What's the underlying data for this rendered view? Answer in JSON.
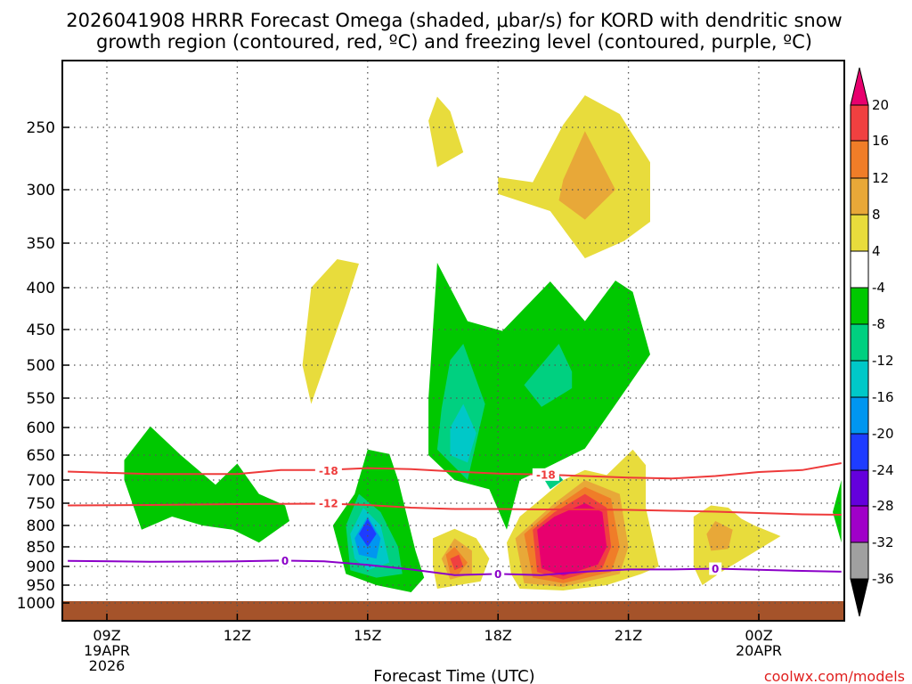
{
  "chart_data": {
    "type": "time-height-contour",
    "title_line1": "2026041908 HRRR Forecast Omega (shaded, μbar/s) for KORD with dendritic snow",
    "title_line2": "growth region (contoured, red, ºC) and freezing level (contoured, purple, ºC)",
    "xlabel": "Forecast Time (UTC)",
    "ylabel": "",
    "credit": "coolwx.com/models",
    "x_ticks": [
      {
        "hour": 9,
        "lines": [
          "09Z",
          "19APR",
          "2026"
        ]
      },
      {
        "hour": 12,
        "lines": [
          "12Z"
        ]
      },
      {
        "hour": 15,
        "lines": [
          "15Z"
        ]
      },
      {
        "hour": 18,
        "lines": [
          "18Z"
        ]
      },
      {
        "hour": 21,
        "lines": [
          "21Z"
        ]
      },
      {
        "hour": 24,
        "lines": [
          "00Z",
          "20APR"
        ]
      }
    ],
    "xlim_hours": [
      8.1,
      25.9
    ],
    "y_ticks": [
      250,
      300,
      350,
      400,
      450,
      500,
      550,
      600,
      650,
      700,
      750,
      800,
      850,
      900,
      950,
      1000
    ],
    "ylim_hpa": [
      200,
      1025
    ],
    "colorbar": {
      "labels": [
        "20",
        "16",
        "12",
        "8",
        "4",
        "-4",
        "-8",
        "-12",
        "-16",
        "-20",
        "-24",
        "-28",
        "-32",
        "-36"
      ],
      "colors": [
        "#e8006e",
        "#f04040",
        "#f07d28",
        "#e8a838",
        "#e8dc3c",
        "#ffffff",
        "#00c800",
        "#00d080",
        "#00c8c8",
        "#0096f0",
        "#1e3cff",
        "#6400dc",
        "#a000c8",
        "#a0a0a0",
        "#000000"
      ]
    },
    "ground_color": "#a5532a",
    "contours": [
      {
        "name": "dgz-minus18",
        "label": "-18",
        "color": "#ee3a3a",
        "points": [
          [
            8.1,
            683
          ],
          [
            10,
            688
          ],
          [
            12,
            688
          ],
          [
            13,
            680
          ],
          [
            14,
            680
          ],
          [
            15,
            676
          ],
          [
            16,
            678
          ],
          [
            17,
            683
          ],
          [
            18,
            687
          ],
          [
            19,
            689
          ],
          [
            20,
            692
          ],
          [
            21,
            695
          ],
          [
            22,
            697
          ],
          [
            23,
            692
          ],
          [
            24,
            684
          ],
          [
            25,
            680
          ],
          [
            25.9,
            666
          ]
        ]
      },
      {
        "name": "dgz-minus12",
        "label": "-12",
        "color": "#ee3a3a",
        "points": [
          [
            8.1,
            755
          ],
          [
            10,
            754
          ],
          [
            12,
            752
          ],
          [
            14,
            751
          ],
          [
            15,
            754
          ],
          [
            16,
            760
          ],
          [
            17,
            763
          ],
          [
            18,
            763
          ],
          [
            19,
            764
          ],
          [
            20,
            764
          ],
          [
            21,
            765
          ],
          [
            22,
            767
          ],
          [
            23,
            769
          ],
          [
            24,
            772
          ],
          [
            25,
            775
          ],
          [
            25.9,
            776
          ]
        ]
      },
      {
        "name": "freezing-level",
        "label": "0",
        "color": "#8b00c8",
        "points": [
          [
            8.1,
            886
          ],
          [
            10,
            888
          ],
          [
            12,
            887
          ],
          [
            13,
            885
          ],
          [
            14,
            887
          ],
          [
            15,
            896
          ],
          [
            16,
            908
          ],
          [
            17,
            923
          ],
          [
            18,
            920
          ],
          [
            19,
            923
          ],
          [
            20,
            914
          ],
          [
            21,
            908
          ],
          [
            22,
            908
          ],
          [
            23,
            906
          ],
          [
            24,
            909
          ],
          [
            25,
            912
          ],
          [
            25.9,
            914
          ]
        ]
      }
    ],
    "contour_labels": [
      {
        "contour": "dgz-minus18",
        "text": "-18",
        "hour": 14.1,
        "hpa": 681
      },
      {
        "contour": "dgz-minus18",
        "text": "-18",
        "hour": 19.1,
        "hpa": 689
      },
      {
        "contour": "dgz-minus12",
        "text": "-12",
        "hour": 14.1,
        "hpa": 750
      },
      {
        "contour": "freezing-level",
        "text": "0",
        "hour": 13.1,
        "hpa": 885
      },
      {
        "contour": "freezing-level",
        "text": "0",
        "hour": 18.0,
        "hpa": 920
      },
      {
        "contour": "freezing-level",
        "text": "0",
        "hour": 23.0,
        "hpa": 906
      }
    ],
    "shaded_regions": [
      {
        "value": "4",
        "color": "#e8dc3c",
        "points": [
          [
            18.8,
            294
          ],
          [
            19.5,
            248
          ],
          [
            20,
            226
          ],
          [
            20.8,
            240
          ],
          [
            21.5,
            278
          ],
          [
            21.5,
            330
          ],
          [
            20.9,
            348
          ],
          [
            20,
            367
          ],
          [
            19.2,
            320
          ],
          [
            18,
            304
          ],
          [
            18,
            290
          ]
        ]
      },
      {
        "value": "8",
        "color": "#e8a838",
        "points": [
          [
            19.5,
            292
          ],
          [
            20,
            253
          ],
          [
            20.7,
            300
          ],
          [
            20,
            328
          ],
          [
            19.4,
            310
          ]
        ]
      },
      {
        "value": "4",
        "color": "#e8dc3c",
        "points": [
          [
            16.6,
            227
          ],
          [
            16.9,
            238
          ],
          [
            17.2,
            270
          ],
          [
            16.6,
            282
          ],
          [
            16.4,
            245
          ]
        ]
      },
      {
        "value": "4",
        "color": "#e8dc3c",
        "points": [
          [
            13.7,
            400
          ],
          [
            14.3,
            368
          ],
          [
            14.8,
            373
          ],
          [
            14.5,
            420
          ],
          [
            13.7,
            560
          ],
          [
            13.5,
            500
          ]
        ]
      },
      {
        "value": "-4",
        "color": "#00c800",
        "points": [
          [
            16.6,
            372
          ],
          [
            17.3,
            440
          ],
          [
            18.1,
            452
          ],
          [
            19.2,
            393
          ],
          [
            20,
            440
          ],
          [
            20.7,
            392
          ],
          [
            21.1,
            405
          ],
          [
            21.5,
            485
          ],
          [
            20,
            638
          ],
          [
            19,
            680
          ],
          [
            18.5,
            700
          ],
          [
            18.2,
            810
          ],
          [
            17.8,
            720
          ],
          [
            17,
            700
          ],
          [
            16.4,
            650
          ],
          [
            16.4,
            550
          ]
        ]
      },
      {
        "value": "-8",
        "color": "#00d080",
        "points": [
          [
            16.9,
            493
          ],
          [
            17.2,
            470
          ],
          [
            17.7,
            560
          ],
          [
            17.3,
            700
          ],
          [
            16.6,
            640
          ],
          [
            16.7,
            568
          ]
        ]
      },
      {
        "value": "-8",
        "color": "#00d080",
        "points": [
          [
            18.6,
            530
          ],
          [
            19.4,
            470
          ],
          [
            19.7,
            510
          ],
          [
            19.7,
            535
          ],
          [
            19.0,
            565
          ]
        ]
      },
      {
        "value": "-8",
        "color": "#00d080",
        "points": [
          [
            19.0,
            690
          ],
          [
            19.3,
            680
          ],
          [
            19.5,
            700
          ],
          [
            19.2,
            720
          ]
        ]
      },
      {
        "value": "-12",
        "color": "#00c8c8",
        "points": [
          [
            16.9,
            600
          ],
          [
            17.2,
            560
          ],
          [
            17.5,
            610
          ],
          [
            17.3,
            665
          ],
          [
            16.9,
            650
          ]
        ]
      },
      {
        "value": "-4",
        "color": "#00c800",
        "points": [
          [
            9.4,
            660
          ],
          [
            10.0,
            598
          ],
          [
            10.7,
            650
          ],
          [
            11.5,
            710
          ],
          [
            12.0,
            667
          ],
          [
            12.5,
            730
          ],
          [
            13.1,
            755
          ],
          [
            13.2,
            790
          ],
          [
            12.5,
            840
          ],
          [
            11.9,
            810
          ],
          [
            11.2,
            800
          ],
          [
            10.5,
            780
          ],
          [
            9.8,
            810
          ],
          [
            9.4,
            700
          ]
        ]
      },
      {
        "value": "-4",
        "color": "#00c800",
        "points": [
          [
            14.7,
            730
          ],
          [
            15,
            640
          ],
          [
            15.5,
            648
          ],
          [
            15.7,
            700
          ],
          [
            16.1,
            860
          ],
          [
            16.3,
            930
          ],
          [
            16.0,
            970
          ],
          [
            15.2,
            950
          ],
          [
            14.5,
            920
          ],
          [
            14.2,
            800
          ]
        ]
      },
      {
        "value": "-8",
        "color": "#00d080",
        "points": [
          [
            14.5,
            800
          ],
          [
            14.8,
            730
          ],
          [
            15.3,
            770
          ],
          [
            15.7,
            850
          ],
          [
            15.8,
            920
          ],
          [
            15.2,
            930
          ],
          [
            14.6,
            910
          ]
        ]
      },
      {
        "value": "-12",
        "color": "#00c8c8",
        "points": [
          [
            14.6,
            820
          ],
          [
            14.9,
            760
          ],
          [
            15.3,
            800
          ],
          [
            15.5,
            890
          ],
          [
            15.0,
            910
          ],
          [
            14.7,
            880
          ]
        ]
      },
      {
        "value": "-16",
        "color": "#0096f0",
        "points": [
          [
            14.7,
            830
          ],
          [
            15,
            780
          ],
          [
            15.3,
            830
          ],
          [
            15.2,
            880
          ],
          [
            14.8,
            870
          ]
        ]
      },
      {
        "value": "-24",
        "color": "#1e3cff",
        "points": [
          [
            14.8,
            820
          ],
          [
            15,
            785
          ],
          [
            15.2,
            820
          ],
          [
            15.0,
            850
          ]
        ]
      },
      {
        "value": "-4",
        "color": "#00c800",
        "points": [
          [
            25.9,
            700
          ],
          [
            25.9,
            840
          ],
          [
            25.7,
            770
          ]
        ]
      },
      {
        "value": "4",
        "color": "#e8dc3c",
        "points": [
          [
            16.5,
            830
          ],
          [
            17.0,
            808
          ],
          [
            17.5,
            830
          ],
          [
            17.8,
            880
          ],
          [
            17.6,
            940
          ],
          [
            16.6,
            960
          ],
          [
            16.5,
            900
          ]
        ]
      },
      {
        "value": "8",
        "color": "#e8a838",
        "points": [
          [
            16.7,
            880
          ],
          [
            17.0,
            830
          ],
          [
            17.4,
            860
          ],
          [
            17.4,
            920
          ],
          [
            16.9,
            935
          ]
        ]
      },
      {
        "value": "12",
        "color": "#f07d28",
        "points": [
          [
            16.8,
            870
          ],
          [
            17.0,
            850
          ],
          [
            17.3,
            890
          ],
          [
            17.1,
            920
          ],
          [
            16.9,
            920
          ]
        ]
      },
      {
        "value": "16",
        "color": "#f04040",
        "points": [
          [
            16.9,
            880
          ],
          [
            17.1,
            870
          ],
          [
            17.2,
            900
          ],
          [
            17.0,
            910
          ]
        ]
      },
      {
        "value": "4",
        "color": "#e8dc3c",
        "points": [
          [
            18.2,
            840
          ],
          [
            18.5,
            780
          ],
          [
            19,
            740
          ],
          [
            19.5,
            700
          ],
          [
            20,
            680
          ],
          [
            20.5,
            690
          ],
          [
            21.1,
            640
          ],
          [
            21.4,
            670
          ],
          [
            21.4,
            760
          ],
          [
            21.7,
            900
          ],
          [
            21.3,
            920
          ],
          [
            20.5,
            950
          ],
          [
            19.5,
            965
          ],
          [
            18.5,
            960
          ],
          [
            18.3,
            920
          ]
        ]
      },
      {
        "value": "8",
        "color": "#e8a838",
        "points": [
          [
            18.4,
            830
          ],
          [
            19.3,
            750
          ],
          [
            20,
            700
          ],
          [
            20.8,
            730
          ],
          [
            21.0,
            850
          ],
          [
            20.8,
            920
          ],
          [
            19.5,
            955
          ],
          [
            18.6,
            945
          ]
        ]
      },
      {
        "value": "12",
        "color": "#f07d28",
        "points": [
          [
            18.6,
            820
          ],
          [
            19.3,
            760
          ],
          [
            20,
            715
          ],
          [
            20.6,
            740
          ],
          [
            20.8,
            850
          ],
          [
            20.6,
            915
          ],
          [
            19.5,
            945
          ],
          [
            18.8,
            930
          ]
        ]
      },
      {
        "value": "16",
        "color": "#f04040",
        "points": [
          [
            18.8,
            810
          ],
          [
            19.3,
            770
          ],
          [
            20,
            730
          ],
          [
            20.5,
            760
          ],
          [
            20.6,
            850
          ],
          [
            20.4,
            905
          ],
          [
            19.5,
            935
          ],
          [
            18.9,
            915
          ]
        ]
      },
      {
        "value": "20",
        "color": "#e8006e",
        "points": [
          [
            18.9,
            810
          ],
          [
            19.3,
            780
          ],
          [
            20,
            750
          ],
          [
            20.4,
            770
          ],
          [
            20.5,
            850
          ],
          [
            20.3,
            895
          ],
          [
            19.5,
            925
          ],
          [
            19.0,
            905
          ]
        ]
      },
      {
        "value": "4",
        "color": "#e8dc3c",
        "points": [
          [
            22.5,
            780
          ],
          [
            22.9,
            755
          ],
          [
            23.3,
            760
          ],
          [
            23.6,
            785
          ],
          [
            23.9,
            800
          ],
          [
            24.5,
            825
          ],
          [
            23.8,
            870
          ],
          [
            23.2,
            910
          ],
          [
            22.7,
            950
          ],
          [
            22.5,
            900
          ]
        ]
      },
      {
        "value": "8",
        "color": "#e8a838",
        "points": [
          [
            22.8,
            820
          ],
          [
            23.0,
            790
          ],
          [
            23.4,
            810
          ],
          [
            23.3,
            855
          ],
          [
            22.9,
            860
          ]
        ]
      }
    ]
  }
}
